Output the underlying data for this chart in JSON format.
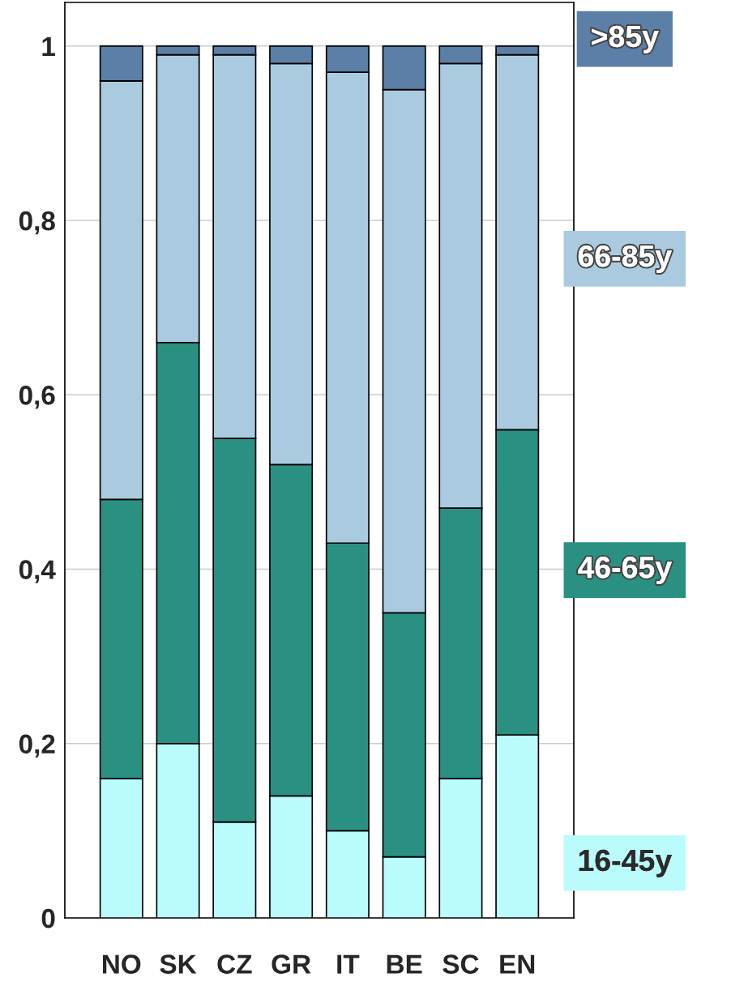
{
  "chart_data": {
    "type": "bar",
    "stacked": true,
    "categories": [
      "NO",
      "SK",
      "CZ",
      "GR",
      "IT",
      "BE",
      "SC",
      "EN"
    ],
    "series": [
      {
        "name": "16-45y",
        "color": "#bafcfc",
        "values": [
          0.16,
          0.2,
          0.11,
          0.14,
          0.1,
          0.07,
          0.16,
          0.21
        ]
      },
      {
        "name": "46-65y",
        "color": "#2a9182",
        "values": [
          0.32,
          0.46,
          0.44,
          0.38,
          0.33,
          0.28,
          0.31,
          0.35
        ]
      },
      {
        "name": "66-85y",
        "color": "#aacbdf",
        "values": [
          0.48,
          0.33,
          0.44,
          0.46,
          0.54,
          0.6,
          0.51,
          0.43
        ]
      },
      {
        "name": ">85y",
        "color": "#5b7fa6",
        "values": [
          0.04,
          0.01,
          0.01,
          0.02,
          0.03,
          0.05,
          0.02,
          0.01
        ]
      }
    ],
    "ylim": [
      0,
      1.05
    ],
    "yticks": [
      0,
      {
        "value": 0.2,
        "label": "0,2"
      },
      {
        "value": 0.4,
        "label": "0,4"
      },
      {
        "value": 0.6,
        "label": "0,6"
      },
      {
        "value": 0.8,
        "label": "0,8"
      },
      1
    ],
    "grid": "y",
    "legend": "right"
  }
}
